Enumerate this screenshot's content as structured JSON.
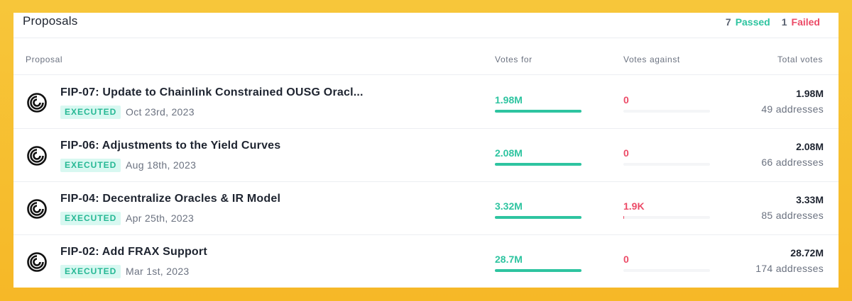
{
  "header": {
    "title": "Proposals",
    "passed_count": "7",
    "passed_label": "Passed",
    "failed_count": "1",
    "failed_label": "Failed"
  },
  "columns": {
    "proposal": "Proposal",
    "votes_for": "Votes for",
    "votes_against": "Votes against",
    "total_votes": "Total votes"
  },
  "colors": {
    "accent_green": "#2ec4a0",
    "accent_red": "#ec4b67",
    "background": "#f7c63a"
  },
  "proposals": [
    {
      "title": "FIP-07: Update to Chainlink Constrained OUSG Oracl...",
      "status": "EXECUTED",
      "date": "Oct 23rd, 2023",
      "votes_for": "1.98M",
      "votes_for_share": 1.0,
      "votes_against": "0",
      "votes_against_share": 0.0,
      "total_votes": "1.98M",
      "addresses": "49 addresses",
      "icon": "protocol-logo-icon"
    },
    {
      "title": "FIP-06: Adjustments to the Yield Curves",
      "status": "EXECUTED",
      "date": "Aug 18th, 2023",
      "votes_for": "2.08M",
      "votes_for_share": 1.0,
      "votes_against": "0",
      "votes_against_share": 0.0,
      "total_votes": "2.08M",
      "addresses": "66 addresses",
      "icon": "protocol-logo-icon"
    },
    {
      "title": "FIP-04: Decentralize Oracles & IR Model",
      "status": "EXECUTED",
      "date": "Apr 25th, 2023",
      "votes_for": "3.32M",
      "votes_for_share": 1.0,
      "votes_against": "1.9K",
      "votes_against_share": 0.01,
      "total_votes": "3.33M",
      "addresses": "85 addresses",
      "icon": "protocol-logo-icon"
    },
    {
      "title": "FIP-02: Add FRAX Support",
      "status": "EXECUTED",
      "date": "Mar 1st, 2023",
      "votes_for": "28.7M",
      "votes_for_share": 1.0,
      "votes_against": "0",
      "votes_against_share": 0.0,
      "total_votes": "28.72M",
      "addresses": "174 addresses",
      "icon": "protocol-logo-icon"
    }
  ]
}
